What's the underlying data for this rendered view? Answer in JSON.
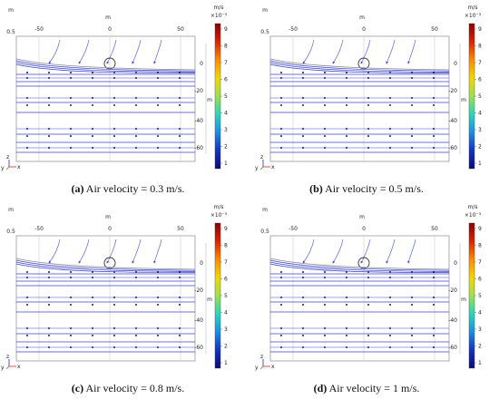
{
  "panels": [
    {
      "id": "a",
      "caption_bold": "(a)",
      "caption_rest": " Air velocity = 0.3 m/s.",
      "axis_unit_x": "m",
      "axis_unit_y": "m",
      "y_top_value": "0.5",
      "x_ticks": [
        "-50",
        "0",
        "50"
      ],
      "y_ticks": [
        "0",
        "-20",
        "-40",
        "-60"
      ],
      "colorbar_unit": "m/s",
      "colorbar_scale": "×10⁻³",
      "colorbar_ticks": [
        "9",
        "8",
        "7",
        "6",
        "5",
        "4",
        "3",
        "2",
        "1"
      ],
      "triad": {
        "z": "z",
        "y": "y",
        "x": "x"
      }
    },
    {
      "id": "b",
      "caption_bold": "(b)",
      "caption_rest": " Air velocity = 0.5 m/s.",
      "axis_unit_x": "m",
      "axis_unit_y": "m",
      "y_top_value": "0.5",
      "x_ticks": [
        "-50",
        "0",
        "50"
      ],
      "y_ticks": [
        "0",
        "-20",
        "-40",
        "-60"
      ],
      "colorbar_unit": "m/s",
      "colorbar_scale": "×10⁻³",
      "colorbar_ticks": [
        "9",
        "8",
        "7",
        "6",
        "5",
        "4",
        "3",
        "2",
        "1"
      ],
      "triad": {
        "z": "z",
        "y": "y",
        "x": "x"
      }
    },
    {
      "id": "c",
      "caption_bold": "(c)",
      "caption_rest": " Air velocity = 0.8 m/s.",
      "axis_unit_x": "m",
      "axis_unit_y": "m",
      "y_top_value": "0.5",
      "x_ticks": [
        "-50",
        "0",
        "50"
      ],
      "y_ticks": [
        "0",
        "-20",
        "-40",
        "-60"
      ],
      "colorbar_unit": "m/s",
      "colorbar_scale": "×10⁻³",
      "colorbar_ticks": [
        "9",
        "8",
        "7",
        "6",
        "5",
        "4",
        "3",
        "2",
        "1"
      ],
      "triad": {
        "z": "z",
        "y": "y",
        "x": "x"
      }
    },
    {
      "id": "d",
      "caption_bold": "(d)",
      "caption_rest": " Air velocity = 1 m/s.",
      "axis_unit_x": "m",
      "axis_unit_y": "m",
      "y_top_value": "0.5",
      "x_ticks": [
        "-50",
        "0",
        "50"
      ],
      "y_ticks": [
        "0",
        "-20",
        "-40",
        "-60"
      ],
      "colorbar_unit": "m/s",
      "colorbar_scale": "×10⁻³",
      "colorbar_ticks": [
        "9",
        "8",
        "7",
        "6",
        "5",
        "4",
        "3",
        "2",
        "1"
      ],
      "triad": {
        "z": "z",
        "y": "y",
        "x": "x"
      }
    }
  ],
  "colors": {
    "streamline": "#3b44c8",
    "streamline_light": "#7b84e0",
    "upper_streamline": "#5a6ed8",
    "frame": "#9a9a9a",
    "triad_x": "#d22",
    "triad_y": "#2a2",
    "triad_z": "#22c"
  },
  "colorbar_gradient": [
    "#8a0000",
    "#e02000",
    "#ff8a00",
    "#f4d600",
    "#9ee04a",
    "#2cd6b8",
    "#1a8ee8",
    "#1232c8",
    "#0a0a7a"
  ]
}
